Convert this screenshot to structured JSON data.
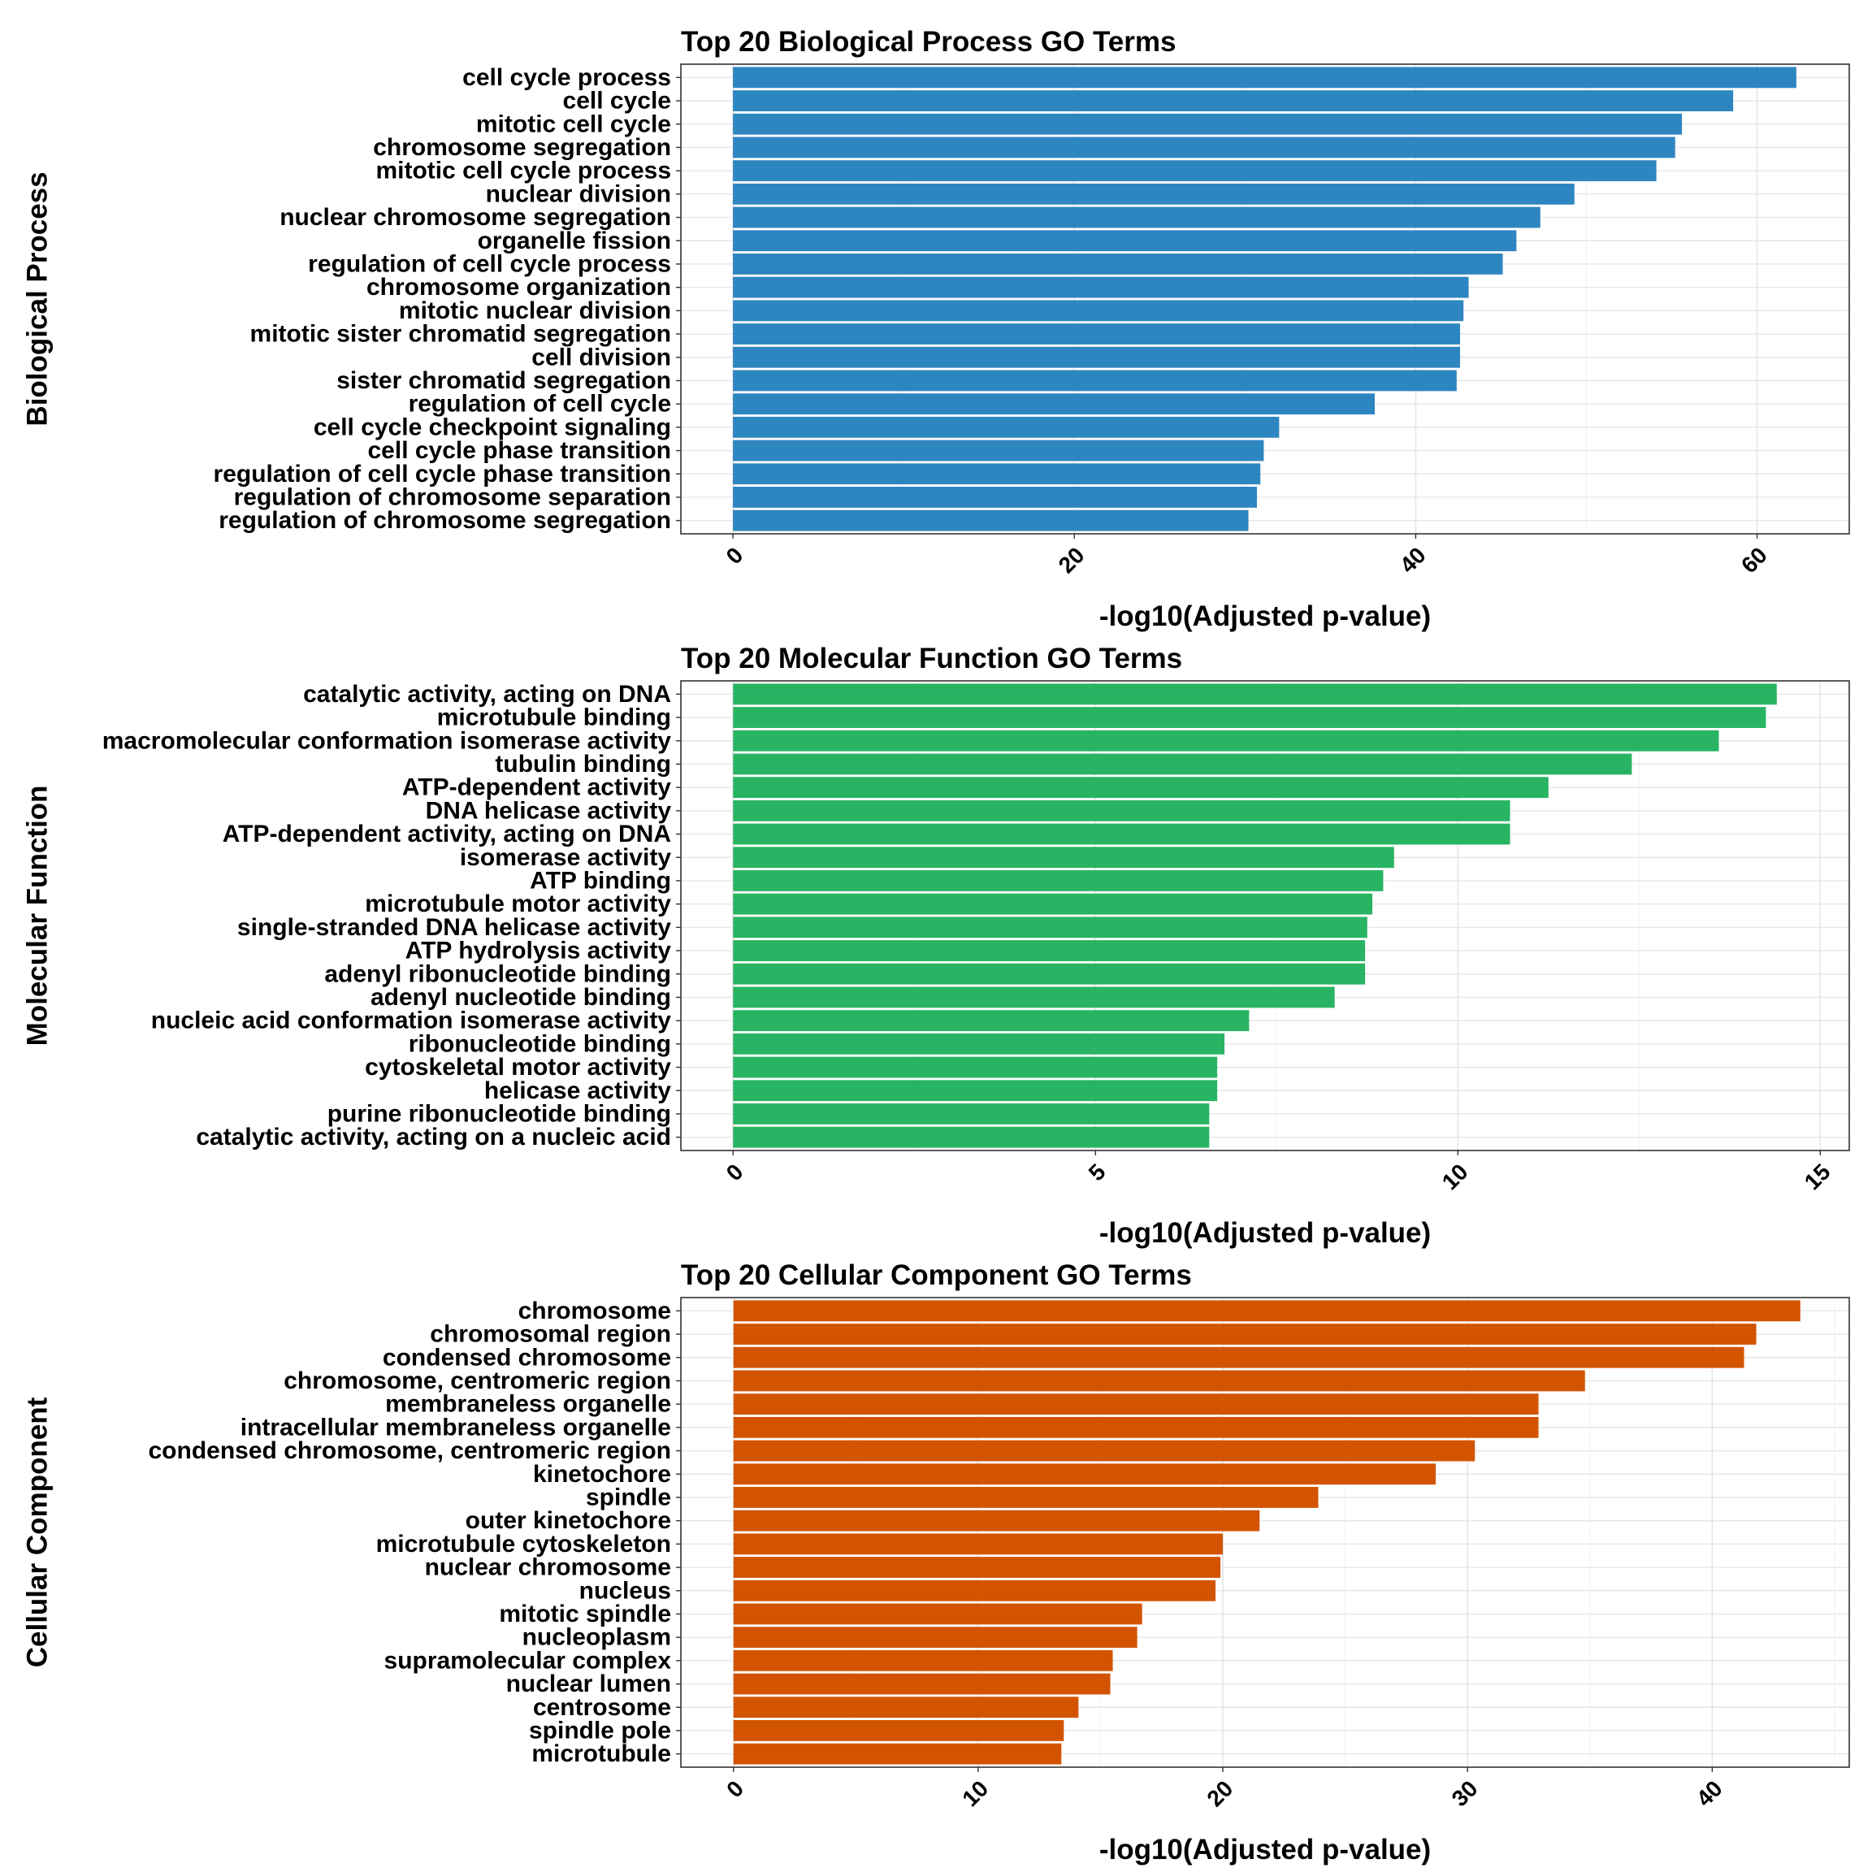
{
  "chart_data": [
    {
      "type": "bar",
      "orientation": "horizontal",
      "title": "Top 20 Biological Process GO Terms",
      "xlabel": "-log10(Adjusted p-value)",
      "ylabel": "Biological Process",
      "color": "#2e86c1",
      "xlim": [
        -3.05,
        65.4
      ],
      "xticks": [
        0,
        20,
        40,
        60
      ],
      "grid": true,
      "legend": "none",
      "categories": [
        "cell cycle process",
        "cell cycle",
        "mitotic cell cycle",
        "chromosome segregation",
        "mitotic cell cycle process",
        "nuclear division",
        "nuclear chromosome segregation",
        "organelle fission",
        "regulation of cell cycle process",
        "chromosome organization",
        "mitotic nuclear division",
        "mitotic sister chromatid segregation",
        "cell division",
        "sister chromatid segregation",
        "regulation of cell cycle",
        "cell cycle checkpoint signaling",
        "cell cycle phase transition",
        "regulation of cell cycle phase transition",
        "regulation of chromosome separation",
        "regulation of chromosome segregation"
      ],
      "values": [
        62.3,
        58.6,
        55.6,
        55.2,
        54.1,
        49.3,
        47.3,
        45.9,
        45.1,
        43.1,
        42.8,
        42.6,
        42.6,
        42.4,
        37.6,
        32.0,
        31.1,
        30.9,
        30.7,
        30.2
      ]
    },
    {
      "type": "bar",
      "orientation": "horizontal",
      "title": "Top 20 Molecular Function GO Terms",
      "xlabel": "-log10(Adjusted p-value)",
      "ylabel": "Molecular Function",
      "color": "#28b463",
      "xlim": [
        -0.72,
        15.4
      ],
      "xticks": [
        0,
        5,
        10,
        15
      ],
      "grid": true,
      "legend": "none",
      "categories": [
        "catalytic activity, acting on DNA",
        "microtubule binding",
        "macromolecular conformation isomerase activity",
        "tubulin binding",
        "ATP-dependent activity",
        "DNA helicase activity",
        "ATP-dependent activity, acting on DNA",
        "isomerase activity",
        "ATP binding",
        "microtubule motor activity",
        "single-stranded DNA helicase activity",
        "ATP hydrolysis activity",
        "adenyl ribonucleotide binding",
        "adenyl nucleotide binding",
        "nucleic acid conformation isomerase activity",
        "ribonucleotide binding",
        "cytoskeletal motor activity",
        "helicase activity",
        "purine ribonucleotide binding",
        "catalytic activity, acting on a nucleic acid"
      ],
      "values": [
        14.4,
        14.25,
        13.6,
        12.4,
        11.25,
        10.72,
        10.72,
        9.12,
        8.97,
        8.82,
        8.75,
        8.72,
        8.72,
        8.3,
        7.12,
        6.78,
        6.68,
        6.68,
        6.57,
        6.57
      ]
    },
    {
      "type": "bar",
      "orientation": "horizontal",
      "title": "Top 20 Cellular Component GO Terms",
      "xlabel": "-log10(Adjusted p-value)",
      "ylabel": "Cellular Component",
      "color": "#d35400",
      "xlim": [
        -2.15,
        45.6
      ],
      "xticks": [
        0,
        10,
        20,
        30,
        40
      ],
      "grid": true,
      "legend": "none",
      "categories": [
        "chromosome",
        "chromosomal region",
        "condensed chromosome",
        "chromosome, centromeric region",
        "membraneless organelle",
        "intracellular membraneless organelle",
        "condensed chromosome, centromeric region",
        "kinetochore",
        "spindle",
        "outer kinetochore",
        "microtubule cytoskeleton",
        "nuclear chromosome",
        "nucleus",
        "mitotic spindle",
        "nucleoplasm",
        "supramolecular complex",
        "nuclear lumen",
        "centrosome",
        "spindle pole",
        "microtubule"
      ],
      "values": [
        43.6,
        41.8,
        41.3,
        34.8,
        32.9,
        32.9,
        30.3,
        28.7,
        23.9,
        21.5,
        20.0,
        19.9,
        19.7,
        16.7,
        16.5,
        15.5,
        15.4,
        14.1,
        13.5,
        13.4
      ]
    }
  ]
}
